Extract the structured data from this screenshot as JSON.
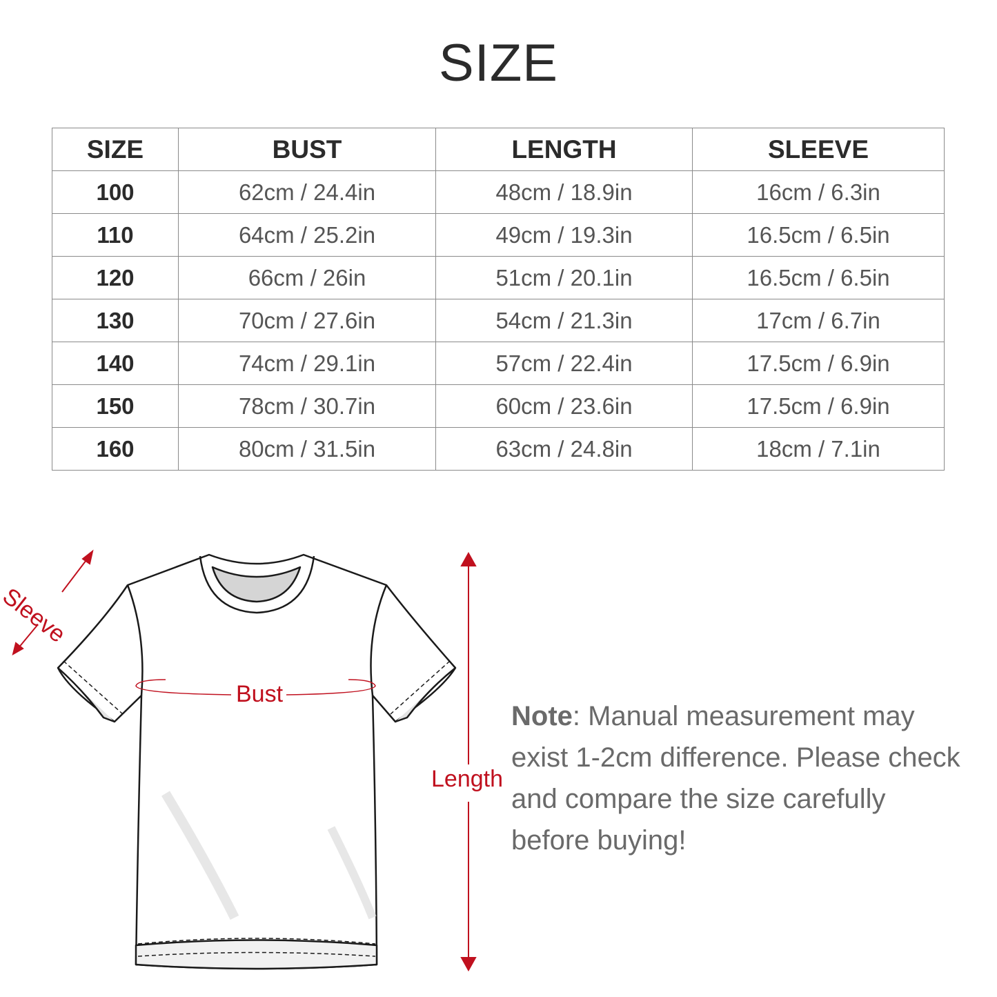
{
  "title": "SIZE",
  "table": {
    "headers": [
      "SIZE",
      "BUST",
      "LENGTH",
      "SLEEVE"
    ],
    "rows": [
      [
        "100",
        "62cm / 24.4in",
        "48cm / 18.9in",
        "16cm / 6.3in"
      ],
      [
        "110",
        "64cm / 25.2in",
        "49cm / 19.3in",
        "16.5cm / 6.5in"
      ],
      [
        "120",
        "66cm / 26in",
        "51cm / 20.1in",
        "16.5cm / 6.5in"
      ],
      [
        "130",
        "70cm / 27.6in",
        "54cm / 21.3in",
        "17cm / 6.7in"
      ],
      [
        "140",
        "74cm / 29.1in",
        "57cm / 22.4in",
        "17.5cm / 6.9in"
      ],
      [
        "150",
        "78cm / 30.7in",
        "60cm / 23.6in",
        "17.5cm / 6.9in"
      ],
      [
        "160",
        "80cm / 31.5in",
        "63cm / 24.8in",
        "18cm / 7.1in"
      ]
    ]
  },
  "diagram": {
    "labels": {
      "sleeve": "Sleeve",
      "bust": "Bust",
      "length": "Length"
    },
    "accent_color": "#c0101e"
  },
  "note": {
    "label": "Note",
    "text": ": Manual measurement may exist 1-2cm difference. Please check and compare the size carefully before buying!"
  }
}
